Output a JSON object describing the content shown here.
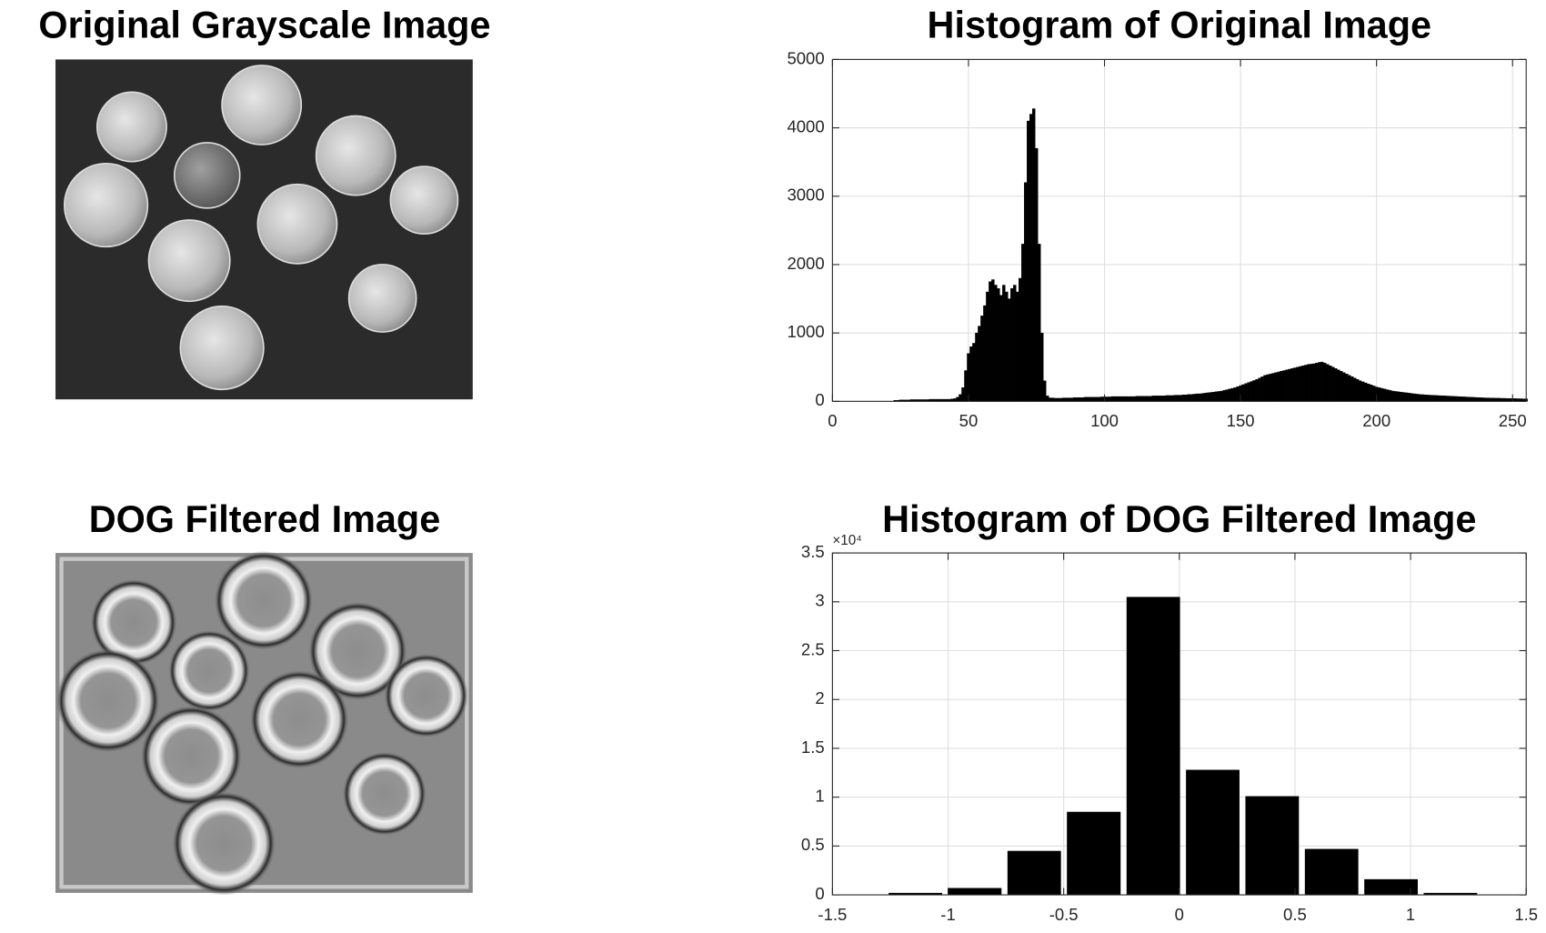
{
  "chart_data": [
    {
      "type": "image",
      "title": "Original Grayscale Image"
    },
    {
      "type": "bar",
      "title": "Histogram of Original Image",
      "x": [
        0,
        1,
        2,
        3,
        4,
        5,
        6,
        7,
        8,
        9,
        10,
        11,
        12,
        13,
        14,
        15,
        16,
        17,
        18,
        19,
        20,
        21,
        22,
        23,
        24,
        25,
        26,
        27,
        28,
        29,
        30,
        31,
        32,
        33,
        34,
        35,
        36,
        37,
        38,
        39,
        40,
        41,
        42,
        43,
        44,
        45,
        46,
        47,
        48,
        49,
        50,
        51,
        52,
        53,
        54,
        55,
        56,
        57,
        58,
        59,
        60,
        61,
        62,
        63,
        64,
        65,
        66,
        67,
        68,
        69,
        70,
        71,
        72,
        73,
        74,
        75,
        76,
        77,
        78,
        79,
        80,
        81,
        82,
        83,
        84,
        85,
        86,
        87,
        88,
        89,
        90,
        91,
        92,
        93,
        94,
        95,
        96,
        97,
        98,
        99,
        100,
        101,
        102,
        103,
        104,
        105,
        106,
        107,
        108,
        109,
        110,
        111,
        112,
        113,
        114,
        115,
        116,
        117,
        118,
        119,
        120,
        121,
        122,
        123,
        124,
        125,
        126,
        127,
        128,
        129,
        130,
        131,
        132,
        133,
        134,
        135,
        136,
        137,
        138,
        139,
        140,
        141,
        142,
        143,
        144,
        145,
        146,
        147,
        148,
        149,
        150,
        151,
        152,
        153,
        154,
        155,
        156,
        157,
        158,
        159,
        160,
        161,
        162,
        163,
        164,
        165,
        166,
        167,
        168,
        169,
        170,
        171,
        172,
        173,
        174,
        175,
        176,
        177,
        178,
        179,
        180,
        181,
        182,
        183,
        184,
        185,
        186,
        187,
        188,
        189,
        190,
        191,
        192,
        193,
        194,
        195,
        196,
        197,
        198,
        199,
        200,
        201,
        202,
        203,
        204,
        205,
        206,
        207,
        208,
        209,
        210,
        211,
        212,
        213,
        214,
        215,
        216,
        217,
        218,
        219,
        220,
        221,
        222,
        223,
        224,
        225,
        226,
        227,
        228,
        229,
        230,
        231,
        232,
        233,
        234,
        235,
        236,
        237,
        238,
        239,
        240,
        241,
        242,
        243,
        244,
        245,
        246,
        247,
        248,
        249,
        250,
        251,
        252,
        253,
        254,
        255
      ],
      "values": [
        0,
        0,
        0,
        0,
        0,
        0,
        0,
        0,
        0,
        0,
        0,
        0,
        0,
        0,
        0,
        0,
        0,
        0,
        0,
        0,
        0,
        0,
        0,
        15,
        15,
        20,
        20,
        20,
        20,
        25,
        25,
        25,
        25,
        25,
        25,
        25,
        30,
        30,
        30,
        30,
        30,
        30,
        30,
        30,
        35,
        40,
        60,
        100,
        200,
        450,
        700,
        800,
        850,
        1000,
        1100,
        1250,
        1400,
        1600,
        1750,
        1780,
        1700,
        1650,
        1550,
        1700,
        1600,
        1500,
        1650,
        1700,
        1600,
        1800,
        2300,
        3200,
        4100,
        4200,
        4280,
        3700,
        2300,
        1000,
        300,
        80,
        50,
        50,
        45,
        45,
        45,
        50,
        50,
        50,
        50,
        55,
        55,
        55,
        55,
        60,
        60,
        60,
        60,
        60,
        60,
        65,
        65,
        65,
        65,
        70,
        70,
        70,
        70,
        70,
        70,
        70,
        70,
        70,
        75,
        75,
        75,
        75,
        75,
        75,
        80,
        80,
        80,
        80,
        80,
        85,
        85,
        85,
        90,
        90,
        90,
        95,
        95,
        100,
        100,
        105,
        110,
        110,
        115,
        120,
        125,
        130,
        135,
        140,
        145,
        150,
        160,
        170,
        180,
        190,
        200,
        215,
        230,
        245,
        260,
        275,
        290,
        305,
        320,
        340,
        360,
        380,
        390,
        400,
        410,
        420,
        430,
        440,
        450,
        460,
        470,
        480,
        490,
        500,
        510,
        520,
        530,
        540,
        545,
        550,
        560,
        570,
        575,
        560,
        540,
        520,
        500,
        480,
        460,
        440,
        420,
        400,
        380,
        360,
        340,
        320,
        300,
        285,
        270,
        255,
        240,
        225,
        210,
        200,
        190,
        180,
        170,
        160,
        150,
        145,
        140,
        135,
        130,
        125,
        120,
        115,
        110,
        105,
        100,
        98,
        95,
        92,
        90,
        88,
        86,
        84,
        82,
        80,
        78,
        76,
        74,
        72,
        70,
        68,
        66,
        64,
        62,
        60,
        58,
        56,
        54,
        52,
        50,
        50,
        48,
        48,
        46,
        46,
        44,
        44,
        42,
        42,
        40,
        40,
        38,
        38,
        36,
        36
      ],
      "color": "#000000",
      "xlim": [
        0,
        255
      ],
      "xticks": [
        0,
        50,
        100,
        150,
        200,
        250
      ],
      "ylim": [
        0,
        5000
      ],
      "yticks": [
        0,
        1000,
        2000,
        3000,
        4000,
        5000
      ],
      "grid": true
    },
    {
      "type": "image",
      "title": "DOG Filtered Image"
    },
    {
      "type": "histogram",
      "title": "Histogram of DOG Filtered Image",
      "bins": [
        -1.27,
        -1.013,
        -0.756,
        -0.499,
        -0.241,
        0.016,
        0.273,
        0.53,
        0.787,
        1.044,
        1.301
      ],
      "values": [
        200,
        700,
        4500,
        8500,
        30500,
        12800,
        10100,
        4700,
        1600,
        200
      ],
      "color": "#000000",
      "xlim": [
        -1.5,
        1.5
      ],
      "xticks": [
        -1.5,
        -1,
        -0.5,
        0,
        0.5,
        1,
        1.5
      ],
      "ylim": [
        0,
        35000
      ],
      "yticks": [
        0,
        {
          "value": 5000,
          "label": "0.5"
        },
        {
          "value": 10000,
          "label": "1"
        },
        {
          "value": 15000,
          "label": "1.5"
        },
        {
          "value": 20000,
          "label": "2"
        },
        {
          "value": 25000,
          "label": "2.5"
        },
        {
          "value": 30000,
          "label": "3"
        },
        {
          "value": 35000,
          "label": "3.5"
        }
      ],
      "y_multiplier": "×10⁴",
      "grid": true
    }
  ]
}
